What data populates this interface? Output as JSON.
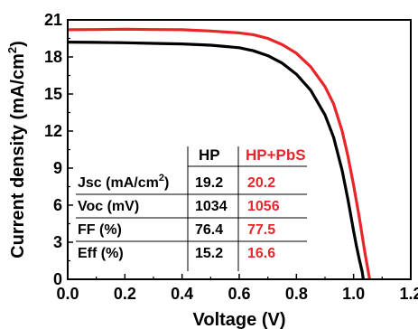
{
  "chart_data": {
    "type": "line",
    "xlabel": "Voltage (V)",
    "ylabel": "Current density (mA/cm²)",
    "ylabel_parts": {
      "before": "Current density (mA/cm",
      "sup": "2",
      "after": ")"
    },
    "xlim": [
      0.0,
      1.2
    ],
    "ylim": [
      0,
      21
    ],
    "xticks": [
      "0.0",
      "0.2",
      "0.4",
      "0.6",
      "0.8",
      "1.0",
      "1.2"
    ],
    "xtick_values": [
      0.0,
      0.2,
      0.4,
      0.6,
      0.8,
      1.0,
      1.2
    ],
    "yticks": [
      "0",
      "3",
      "6",
      "9",
      "12",
      "15",
      "18",
      "21"
    ],
    "ytick_values": [
      0,
      3,
      6,
      9,
      12,
      15,
      18,
      21
    ],
    "grid": false,
    "series": [
      {
        "name": "HP",
        "color": "#000000",
        "x": [
          0.0,
          0.1,
          0.2,
          0.3,
          0.4,
          0.5,
          0.6,
          0.65,
          0.7,
          0.75,
          0.8,
          0.85,
          0.9,
          0.93,
          0.96,
          0.98,
          1.0,
          1.01,
          1.02,
          1.03,
          1.034
        ],
        "y": [
          19.2,
          19.18,
          19.15,
          19.1,
          19.05,
          18.95,
          18.75,
          18.5,
          18.1,
          17.5,
          16.6,
          15.3,
          13.3,
          11.5,
          8.8,
          6.5,
          3.9,
          2.7,
          1.6,
          0.6,
          0
        ]
      },
      {
        "name": "HP+PbS",
        "color": "#e8262a",
        "x": [
          0.0,
          0.1,
          0.2,
          0.3,
          0.4,
          0.5,
          0.6,
          0.65,
          0.7,
          0.75,
          0.8,
          0.85,
          0.9,
          0.93,
          0.96,
          0.98,
          1.0,
          1.02,
          1.04,
          1.05,
          1.056
        ],
        "y": [
          20.2,
          20.22,
          20.25,
          20.22,
          20.2,
          20.1,
          19.95,
          19.8,
          19.5,
          19.0,
          18.3,
          17.2,
          15.6,
          14.2,
          12.0,
          10.0,
          7.6,
          5.0,
          2.1,
          0.8,
          0
        ]
      }
    ],
    "table": {
      "headers": [
        "",
        "HP",
        "HP+PbS"
      ],
      "rows": [
        {
          "label_before": "Jsc (mA/cm",
          "label_sup": "2",
          "label_after": ")",
          "hp": "19.2",
          "hp_pbs": "20.2"
        },
        {
          "label_before": "Voc (mV)",
          "label_sup": "",
          "label_after": "",
          "hp": "1034",
          "hp_pbs": "1056"
        },
        {
          "label_before": "FF (%)",
          "label_sup": "",
          "label_after": "",
          "hp": "76.4",
          "hp_pbs": "77.5"
        },
        {
          "label_before": "Eff (%)",
          "label_sup": "",
          "label_after": "",
          "hp": "15.2",
          "hp_pbs": "16.6"
        }
      ]
    },
    "colors": {
      "axis": "#000000",
      "hp_pbs": "#e8262a",
      "hp": "#000000"
    }
  }
}
